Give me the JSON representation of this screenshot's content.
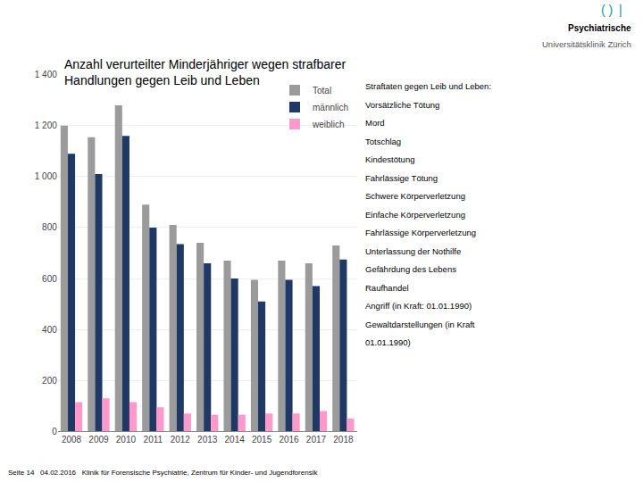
{
  "chart_data": {
    "type": "bar",
    "title": "Anzahl verurteilter Minderjähriger wegen strafbarer\nHandlungen gegen Leib und Leben",
    "categories": [
      "2008",
      "2009",
      "2010",
      "2011",
      "2012",
      "2013",
      "2014",
      "2015",
      "2016",
      "2017",
      "2018"
    ],
    "series": [
      {
        "name": "Total",
        "color": "#9B9B9B",
        "values": [
          1200,
          1155,
          1280,
          890,
          810,
          740,
          670,
          595,
          670,
          660,
          730
        ]
      },
      {
        "name": "männlich",
        "color": "#1F3864",
        "values": [
          1090,
          1010,
          1160,
          800,
          735,
          660,
          600,
          510,
          595,
          570,
          675
        ]
      },
      {
        "name": "weiblich",
        "color": "#FF99CC",
        "values": [
          115,
          130,
          115,
          95,
          70,
          65,
          65,
          70,
          70,
          80,
          50
        ]
      }
    ],
    "ylim": [
      0,
      1400
    ],
    "yticks": [
      0,
      200,
      400,
      600,
      800,
      {
        "value": 1000,
        "label": "1 000"
      },
      {
        "value": 1200,
        "label": "1 200"
      },
      {
        "value": 1400,
        "label": "1 400"
      }
    ],
    "grid": true,
    "legend": "upper right",
    "annotations": [
      "Straftaten gegen Leib und Leben:",
      "Vorsätzliche Tötung",
      "Mord",
      "Totschlag",
      "Kindestötung",
      "Fahrlässige Tötung",
      "Schwere Körperverletzung",
      "Einfache Körperverletzung",
      "Fahrlässige Körperverletzung",
      "Unterlassung der Nothilfe",
      "Gefährdung des Lebens",
      "Raufhandel",
      "Angriff (in Kraft: 01.01.1990)",
      "Gewaltdarstellungen (in Kraft",
      "01.01.1990)",
      "Seite 14   04.02.2016   Klinik für Forensische Psychiatrie, Zentrum für Kinder- und Jugendforensik",
      "Psychiatrische",
      "Universitätsklinik Zürich",
      "( )",
      "|"
    ]
  }
}
